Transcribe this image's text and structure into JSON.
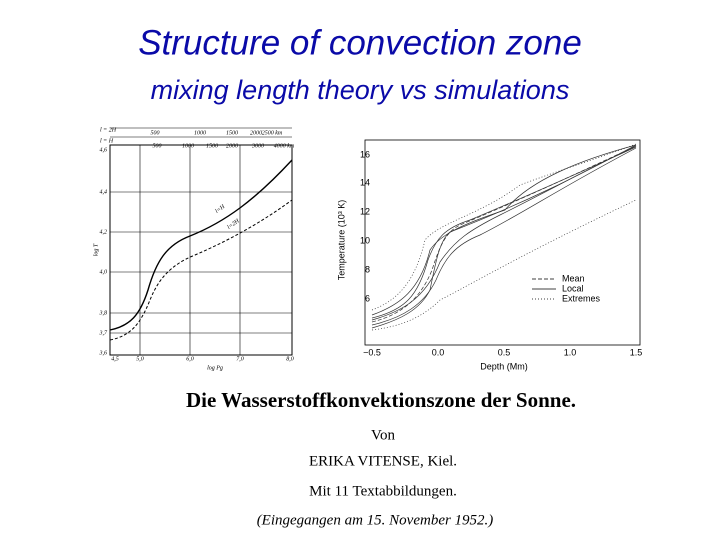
{
  "header": {
    "title": "Structure of convection zone",
    "subtitle": "mixing length theory vs simulations"
  },
  "left_figure": {
    "y_ticks": [
      "4,6",
      "4,4",
      "4,2",
      "4,0",
      "3,8",
      "3,7",
      "3,6"
    ],
    "x_ticks": [
      "4,5",
      "5,0",
      "6,0",
      "7,0",
      "8,0"
    ],
    "y_label": "log T",
    "x_label": "log Pg",
    "top_row_1_label": "l = 2H",
    "top_row_1": [
      "500",
      "1000",
      "1500",
      "2000",
      "2500 km"
    ],
    "top_row_2_label": "l = H",
    "top_row_2": [
      "500",
      "1000",
      "1500",
      "2000",
      "3000",
      "4000 km"
    ],
    "curve_labels": [
      "l=H",
      "l=2H"
    ]
  },
  "right_figure": {
    "y_ticks": [
      "16",
      "14",
      "12",
      "10",
      "8",
      "6"
    ],
    "x_ticks": [
      "−0.5",
      "0.0",
      "0.5",
      "1.0",
      "1.5"
    ],
    "y_label": "Temperature (10³ K)",
    "x_label": "Depth (Mm)",
    "legend": [
      "Mean",
      "Local",
      "Extremes"
    ]
  },
  "paper": {
    "title": "Die Wasserstoffkonvektionszone der Sonne.",
    "by": "Von",
    "author": "ERIKA VITENSE, Kiel.",
    "figures": "Mit 11 Textabbildungen.",
    "received": "(Eingegangen am 15. November 1952.)"
  }
}
